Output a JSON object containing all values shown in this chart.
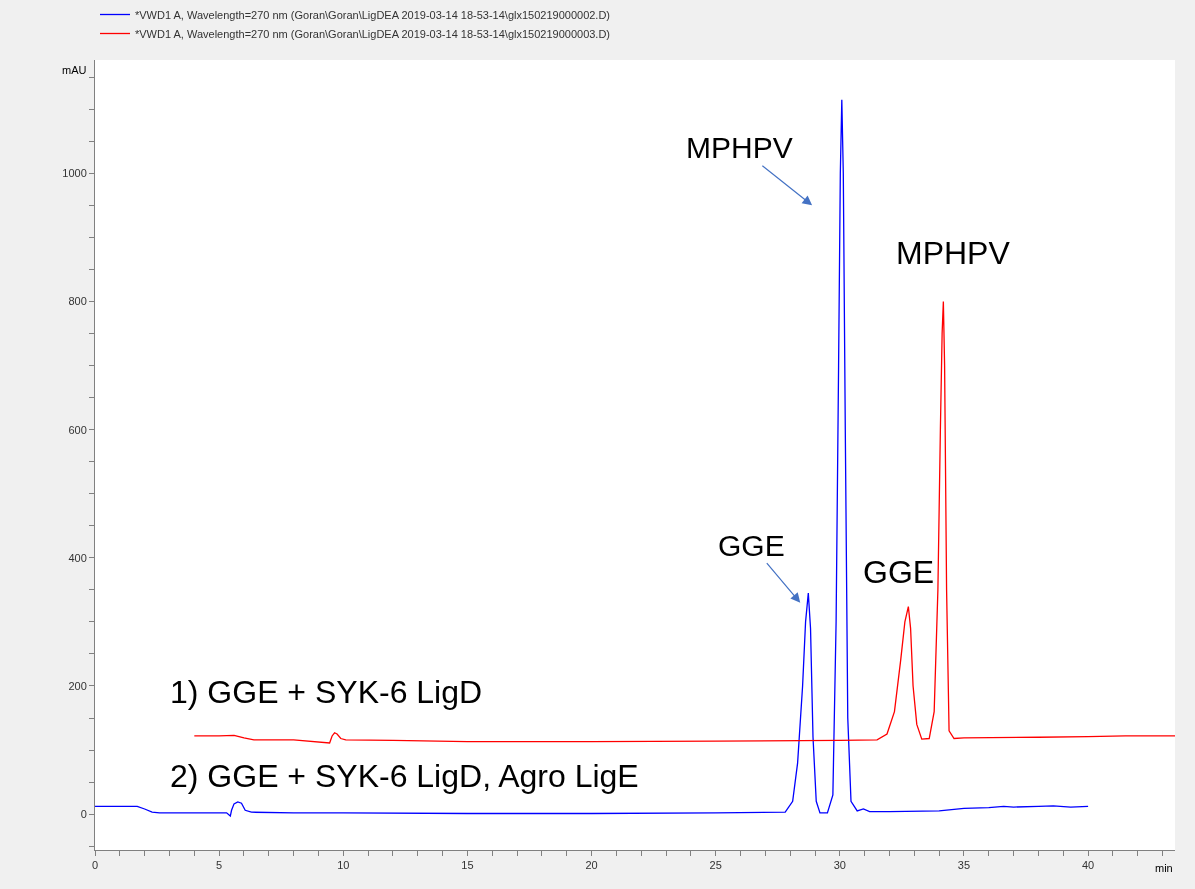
{
  "chart_data": {
    "type": "line",
    "xlabel": "min",
    "ylabel": "mAU",
    "legend": "top left",
    "marker": "none",
    "line_style": "solid",
    "xlim": [
      0,
      43.5
    ],
    "ylim": [
      -56,
      1177
    ],
    "xticks": [
      0,
      {
        "value": 1,
        "label": null
      },
      {
        "value": 2,
        "label": null
      },
      {
        "value": 3,
        "label": null
      },
      {
        "value": 4,
        "label": null
      },
      5,
      {
        "value": 6,
        "label": null
      },
      {
        "value": 7,
        "label": null
      },
      {
        "value": 8,
        "label": null
      },
      {
        "value": 9,
        "label": null
      },
      10,
      {
        "value": 11,
        "label": null
      },
      {
        "value": 12,
        "label": null
      },
      {
        "value": 13,
        "label": null
      },
      {
        "value": 14,
        "label": null
      },
      15,
      {
        "value": 16,
        "label": null
      },
      {
        "value": 17,
        "label": null
      },
      {
        "value": 18,
        "label": null
      },
      {
        "value": 19,
        "label": null
      },
      20,
      {
        "value": 21,
        "label": null
      },
      {
        "value": 22,
        "label": null
      },
      {
        "value": 23,
        "label": null
      },
      {
        "value": 24,
        "label": null
      },
      25,
      {
        "value": 26,
        "label": null
      },
      {
        "value": 27,
        "label": null
      },
      {
        "value": 28,
        "label": null
      },
      {
        "value": 29,
        "label": null
      },
      30,
      {
        "value": 31,
        "label": null
      },
      {
        "value": 32,
        "label": null
      },
      {
        "value": 33,
        "label": null
      },
      {
        "value": 34,
        "label": null
      },
      35,
      {
        "value": 36,
        "label": null
      },
      {
        "value": 37,
        "label": null
      },
      {
        "value": 38,
        "label": null
      },
      {
        "value": 39,
        "label": null
      },
      40,
      {
        "value": 41,
        "label": null
      },
      {
        "value": 42,
        "label": null
      },
      {
        "value": 43,
        "label": null
      }
    ],
    "yticks": [
      {
        "value": -50,
        "label": null
      },
      0,
      {
        "value": 50,
        "label": null
      },
      {
        "value": 100,
        "label": null
      },
      {
        "value": 150,
        "label": null
      },
      200,
      {
        "value": 250,
        "label": null
      },
      {
        "value": 300,
        "label": null
      },
      {
        "value": 350,
        "label": null
      },
      400,
      {
        "value": 450,
        "label": null
      },
      {
        "value": 500,
        "label": null
      },
      {
        "value": 550,
        "label": null
      },
      600,
      {
        "value": 650,
        "label": null
      },
      {
        "value": 700,
        "label": null
      },
      {
        "value": 750,
        "label": null
      },
      800,
      {
        "value": 850,
        "label": null
      },
      {
        "value": 900,
        "label": null
      },
      {
        "value": 950,
        "label": null
      },
      1000,
      {
        "value": 1050,
        "label": null
      },
      {
        "value": 1100,
        "label": null
      },
      {
        "value": 1150,
        "label": null
      }
    ],
    "series": [
      {
        "name": "*VWD1 A, Wavelength=270 nm (Goran\\Goran\\LigDEA 2019-03-14 18-53-14\\glx150219000002.D)",
        "color": "#0000ff",
        "x": [
          0,
          1,
          1.7,
          2.0,
          2.3,
          2.6,
          4,
          5.3,
          5.45,
          5.5,
          5.6,
          5.75,
          5.9,
          6.05,
          6.3,
          8,
          10,
          15,
          20,
          25,
          27.8,
          28.1,
          28.3,
          28.5,
          28.62,
          28.73,
          28.82,
          28.92,
          29.05,
          29.2,
          29.5,
          29.72,
          29.85,
          29.95,
          30.02,
          30.08,
          30.14,
          30.22,
          30.32,
          30.45,
          30.7,
          30.95,
          31.2,
          32,
          34,
          35,
          36,
          36.6,
          37,
          38,
          38.6,
          39.3,
          40
        ],
        "values": [
          12,
          12,
          12,
          8,
          3,
          2,
          2,
          2,
          -3,
          6,
          16,
          19,
          17,
          6,
          3,
          2,
          2,
          1,
          1,
          2,
          3,
          20,
          80,
          200,
          300,
          345,
          290,
          120,
          20,
          2,
          2,
          30,
          300,
          700,
          1000,
          1115,
          1000,
          600,
          150,
          20,
          5,
          8,
          4,
          4,
          5,
          9,
          10,
          12,
          11,
          12,
          13,
          11,
          12
        ]
      },
      {
        "name": "*VWD1 A, Wavelength=270 nm (Goran\\Goran\\LigDEA 2019-03-14 18-53-14\\glx150219000003.D)",
        "color": "#ff0000",
        "x": [
          4,
          5,
          5.6,
          6.0,
          6.4,
          8,
          9.45,
          9.55,
          9.65,
          9.75,
          9.9,
          10.1,
          12,
          15,
          20,
          25,
          30,
          31.5,
          31.9,
          32.2,
          32.45,
          32.62,
          32.76,
          32.85,
          32.95,
          33.1,
          33.3,
          33.6,
          33.8,
          33.95,
          34.05,
          34.12,
          34.17,
          34.22,
          34.3,
          34.4,
          34.6,
          35,
          38,
          40,
          41.5,
          43.5
        ],
        "values": [
          122,
          122,
          123,
          119,
          116,
          116,
          111,
          122,
          127,
          125,
          118,
          116,
          115,
          113,
          113,
          114,
          115,
          116,
          125,
          160,
          240,
          300,
          324,
          290,
          200,
          140,
          117,
          118,
          160,
          350,
          600,
          750,
          800,
          700,
          350,
          130,
          118,
          119,
          120,
          121,
          122,
          122
        ]
      }
    ],
    "annotations": [
      "MPHPV",
      "MPHPV",
      "GGE",
      "GGE",
      "1) GGE + SYK-6 LigD",
      "2) GGE + SYK-6 LigD, Agro LigE"
    ]
  }
}
